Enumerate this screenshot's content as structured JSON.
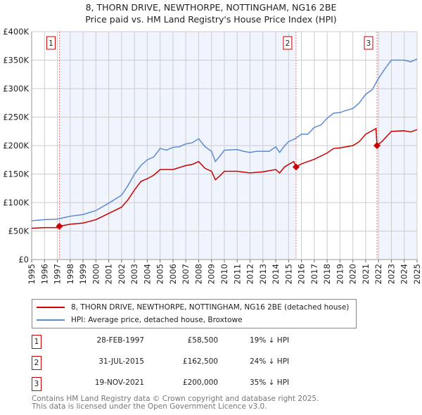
{
  "chart_data": {
    "type": "line",
    "title": "8, THORN DRIVE, NEWTHORPE, NOTTINGHAM, NG16 2BE",
    "subtitle": "Price paid vs. HM Land Registry's House Price Index (HPI)",
    "xlim": [
      1995,
      2025
    ],
    "ylim": [
      0,
      400000
    ],
    "x_ticks": [
      "1995",
      "1996",
      "1997",
      "1998",
      "1999",
      "2000",
      "2001",
      "2002",
      "2003",
      "2004",
      "2005",
      "2006",
      "2007",
      "2008",
      "2009",
      "2010",
      "2011",
      "2012",
      "2013",
      "2014",
      "2015",
      "2016",
      "2017",
      "2018",
      "2019",
      "2020",
      "2021",
      "2022",
      "2023",
      "2024",
      "2025"
    ],
    "y_ticks": [
      {
        "v": 0,
        "label": "£0"
      },
      {
        "v": 50000,
        "label": "£50K"
      },
      {
        "v": 100000,
        "label": "£100K"
      },
      {
        "v": 150000,
        "label": "£150K"
      },
      {
        "v": 200000,
        "label": "£200K"
      },
      {
        "v": 250000,
        "label": "£250K"
      },
      {
        "v": 300000,
        "label": "£300K"
      },
      {
        "v": 350000,
        "label": "£350K"
      },
      {
        "v": 400000,
        "label": "£400K"
      }
    ],
    "grid": true,
    "series": [
      {
        "name": "8, THORN DRIVE, NEWTHORPE, NOTTINGHAM, NG16 2BE (detached house)",
        "color": "#cc0000",
        "x": [
          1995,
          1996,
          1997.1,
          1997.16,
          1998,
          1999,
          2000,
          2001,
          2002,
          2002.5,
          2003,
          2003.5,
          2004,
          2004.5,
          2005,
          2006,
          2007,
          2007.5,
          2008,
          2008.5,
          2009,
          2009.3,
          2009.7,
          2010,
          2011,
          2012,
          2013,
          2014,
          2014.3,
          2014.7,
          2015.4,
          2015.58,
          2016,
          2017,
          2018,
          2018.5,
          2019,
          2020,
          2020.5,
          2021,
          2021.8,
          2021.88,
          2022.3,
          2023,
          2024,
          2024.5,
          2025
        ],
        "y": [
          55000,
          56000,
          56000,
          58500,
          62000,
          64000,
          70000,
          81000,
          92000,
          105000,
          122000,
          137000,
          142000,
          148000,
          158000,
          158000,
          165000,
          167000,
          172000,
          160000,
          155000,
          140000,
          148000,
          155000,
          155000,
          152000,
          154000,
          158000,
          152000,
          163000,
          172000,
          162500,
          168000,
          176000,
          187000,
          195000,
          196000,
          200000,
          207000,
          220000,
          230000,
          200000,
          208000,
          225000,
          226000,
          224000,
          228000
        ]
      },
      {
        "name": "HPI: Average price, detached house, Broxtowe",
        "color": "#5b8bd0",
        "x": [
          1995,
          1996,
          1997,
          1998,
          1999,
          2000,
          2001,
          2002,
          2002.5,
          2003,
          2003.5,
          2004,
          2004.5,
          2005,
          2005.5,
          2006,
          2006.5,
          2007,
          2007.5,
          2008,
          2008.5,
          2009,
          2009.3,
          2009.7,
          2010,
          2011,
          2011.5,
          2012,
          2012.5,
          2013,
          2013.5,
          2014,
          2014.3,
          2014.7,
          2015,
          2015.5,
          2016,
          2016.5,
          2017,
          2017.5,
          2018,
          2018.5,
          2019,
          2019.5,
          2020,
          2020.5,
          2021,
          2021.5,
          2022,
          2022.5,
          2023,
          2023.5,
          2024,
          2024.5,
          2025
        ],
        "y": [
          68000,
          70000,
          71000,
          76000,
          79000,
          86000,
          99000,
          113000,
          130000,
          150000,
          165000,
          175000,
          180000,
          195000,
          192000,
          197000,
          198000,
          203000,
          205000,
          212000,
          198000,
          190000,
          172000,
          183000,
          192000,
          193000,
          190000,
          188000,
          190000,
          190000,
          190000,
          198000,
          188000,
          200000,
          207000,
          212000,
          220000,
          220000,
          232000,
          236000,
          248000,
          257000,
          258000,
          262000,
          265000,
          275000,
          290000,
          298000,
          318000,
          335000,
          350000,
          350000,
          350000,
          347000,
          352000
        ]
      }
    ],
    "sales": [
      {
        "id": "1",
        "x": 1997.16,
        "y": 58500,
        "date": "28-FEB-1997",
        "price": "£58,500",
        "hpi": "19% ↓ HPI"
      },
      {
        "id": "2",
        "x": 2015.58,
        "y": 162500,
        "date": "31-JUL-2015",
        "price": "£162,500",
        "hpi": "24% ↓ HPI"
      },
      {
        "id": "3",
        "x": 2021.88,
        "y": 200000,
        "date": "19-NOV-2021",
        "price": "£200,000",
        "hpi": "35% ↓ HPI"
      }
    ],
    "legend_placement": "bottom"
  },
  "footer": {
    "line1": "Contains HM Land Registry data © Crown copyright and database right 2025.",
    "line2": "This data is licensed under the Open Government Licence v3.0."
  }
}
